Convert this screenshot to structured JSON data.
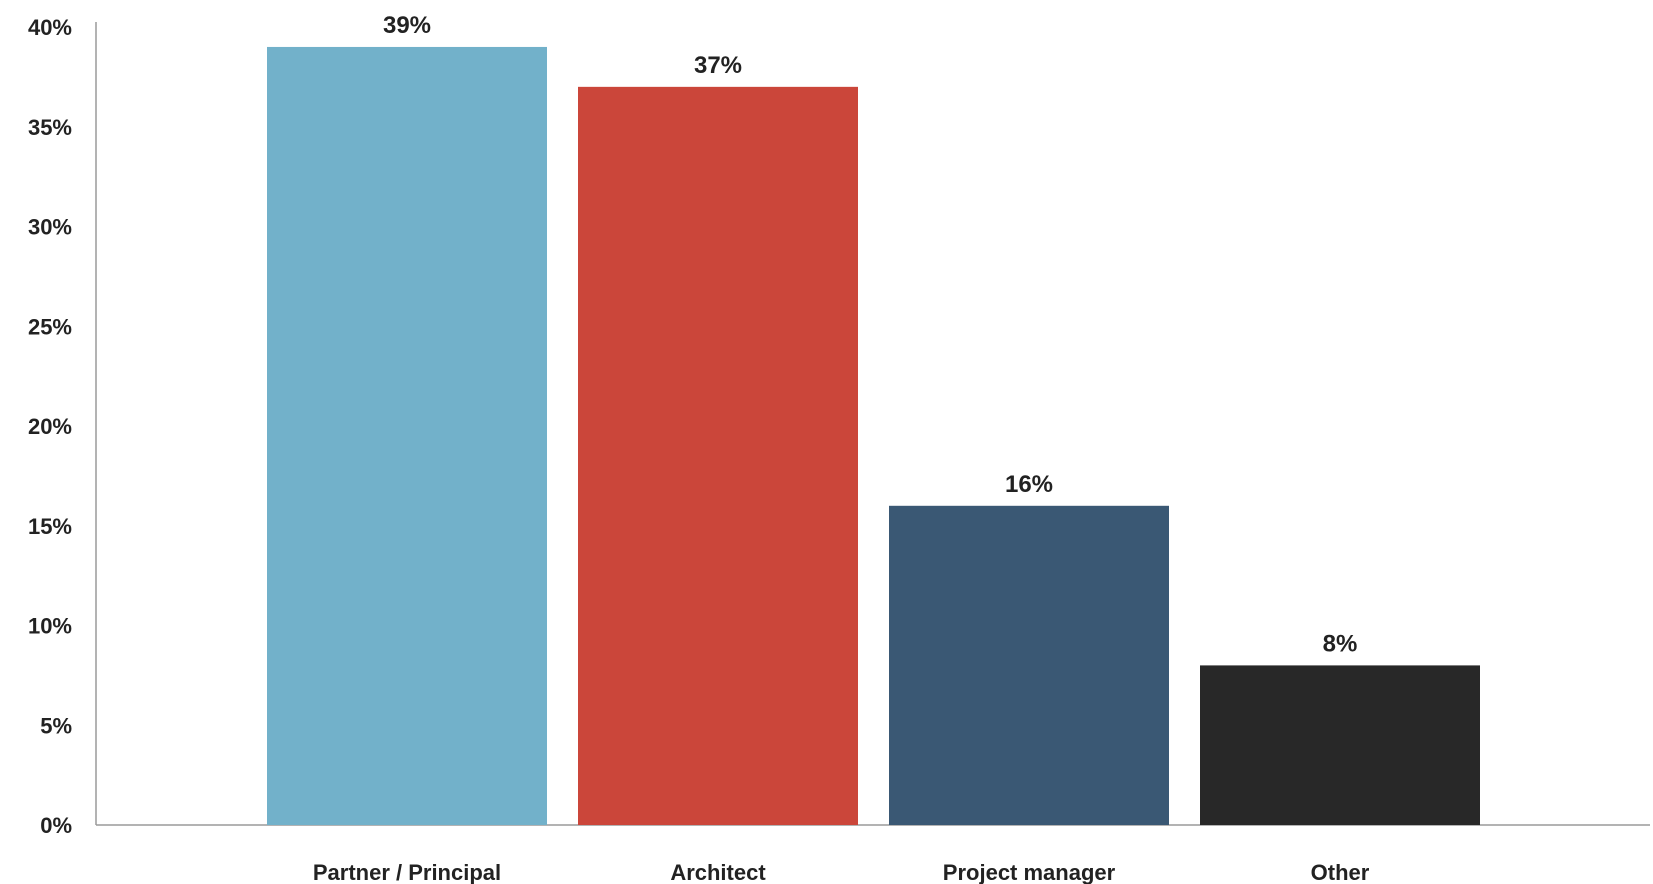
{
  "chart_data": {
    "type": "bar",
    "title": "",
    "xlabel": "",
    "ylabel": "",
    "categories": [
      "Partner / Principal",
      "Architect",
      "Project manager",
      "Other"
    ],
    "values": [
      39,
      37,
      16,
      8
    ],
    "data_labels": [
      "39%",
      "37%",
      "16%",
      "8%"
    ],
    "colors": [
      "#72b1ca",
      "#cb463a",
      "#3a5874",
      "#282828"
    ],
    "ylim": [
      0,
      40
    ],
    "y_ticks": [
      0,
      5,
      10,
      15,
      20,
      25,
      30,
      35,
      40
    ],
    "y_tick_labels": [
      "0%",
      "5%",
      "10%",
      "15%",
      "20%",
      "25%",
      "30%",
      "35%",
      "40%"
    ],
    "grid": false,
    "legend": "none"
  }
}
